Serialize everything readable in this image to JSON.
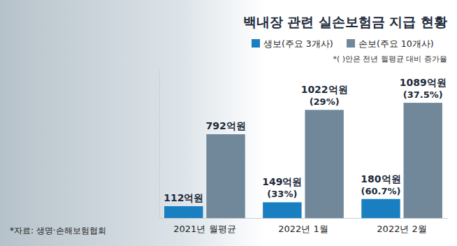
{
  "chart_data": {
    "type": "bar",
    "title": "백내장 관련 실손보험금 지급 현황",
    "subtitle": "*( )안은 전년 월평균 대비 증가율",
    "source": "*자료: 생명·손해보험협회",
    "categories": [
      "2021년 월평균",
      "2022년 1월",
      "2022년 2월"
    ],
    "series": [
      {
        "name": "생보(주요 3개사)",
        "color": "#1a7fc1",
        "values": [
          112,
          149,
          180
        ],
        "value_labels": [
          "112억원",
          "149억원",
          "180억원"
        ],
        "growth_labels": [
          null,
          "(33%)",
          "(60.7%)"
        ]
      },
      {
        "name": "손보(주요 10개사)",
        "color": "#71889a",
        "values": [
          792,
          1022,
          1089
        ],
        "value_labels": [
          "792억원",
          "1022억원",
          "1089억원"
        ],
        "growth_labels": [
          null,
          "(29%)",
          "(37.5%)"
        ]
      }
    ],
    "ylim": [
      0,
      1400
    ],
    "tick_labels": "x",
    "data_labels": true,
    "legend": "top-right",
    "grid": false
  }
}
